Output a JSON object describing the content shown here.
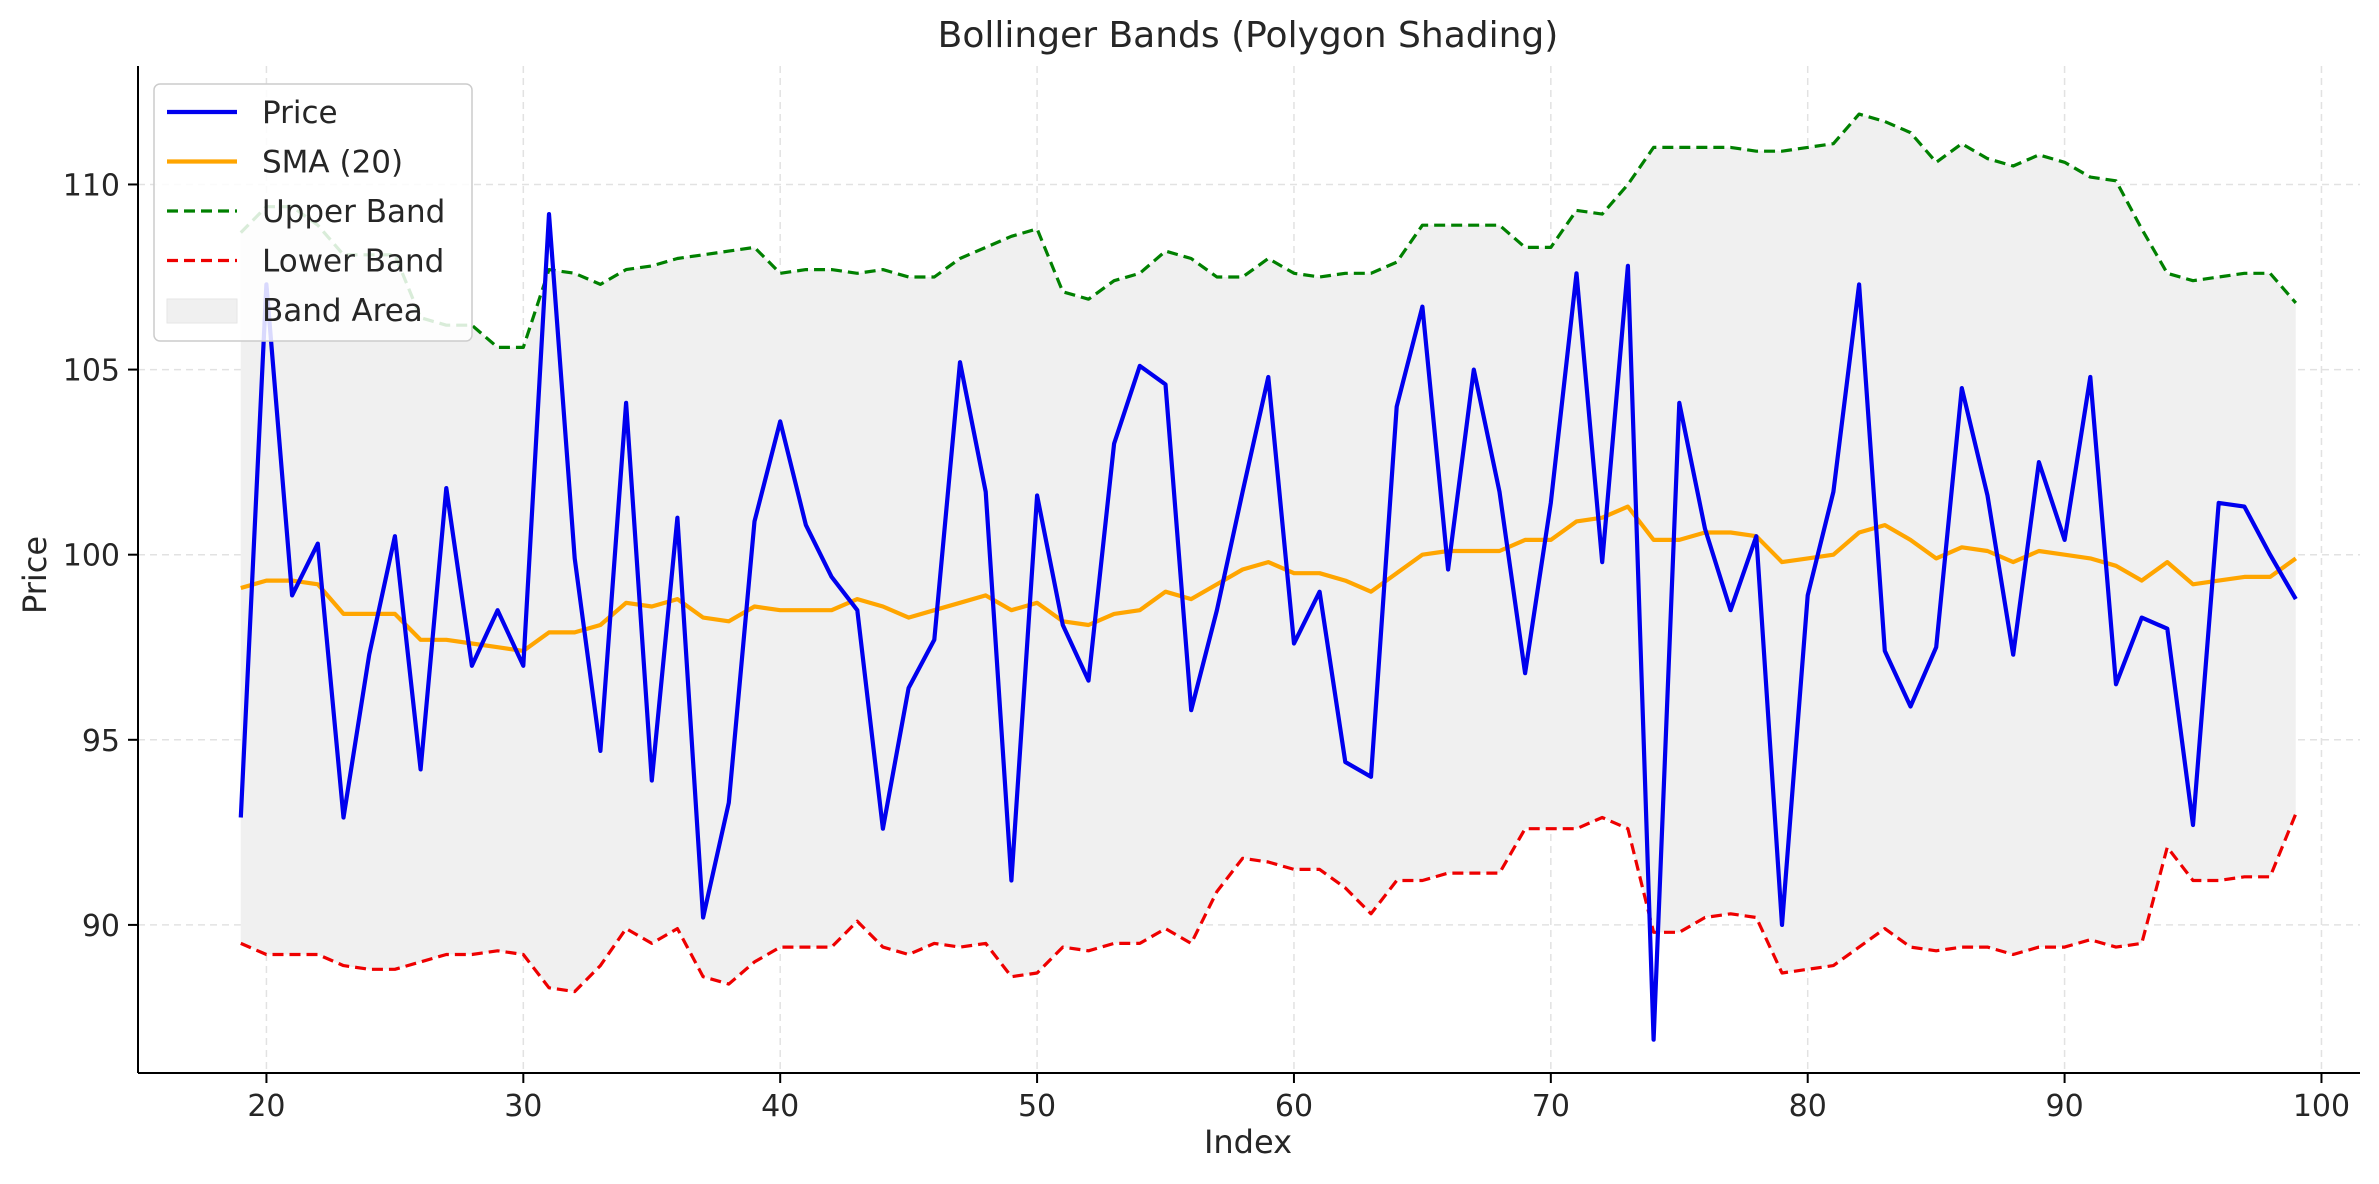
{
  "chart_data": {
    "type": "line",
    "title": "Bollinger Bands (Polygon Shading)",
    "xlabel": "Index",
    "ylabel": "Price",
    "xlim": [
      15,
      101.5
    ],
    "ylim": [
      86.0,
      113.2
    ],
    "x_ticks": [
      20,
      30,
      40,
      50,
      60,
      70,
      80,
      90,
      100
    ],
    "y_ticks": [
      90,
      95,
      100,
      105,
      110
    ],
    "grid": true,
    "legend_position": "top-left",
    "x": [
      19,
      20,
      21,
      22,
      23,
      24,
      25,
      26,
      27,
      28,
      29,
      30,
      31,
      32,
      33,
      34,
      35,
      36,
      37,
      38,
      39,
      40,
      41,
      42,
      43,
      44,
      45,
      46,
      47,
      48,
      49,
      50,
      51,
      52,
      53,
      54,
      55,
      56,
      57,
      58,
      59,
      60,
      61,
      62,
      63,
      64,
      65,
      66,
      67,
      68,
      69,
      70,
      71,
      72,
      73,
      74,
      75,
      76,
      77,
      78,
      79,
      80,
      81,
      82,
      83,
      84,
      85,
      86,
      87,
      88,
      89,
      90,
      91,
      92,
      93,
      94,
      95,
      96,
      97,
      98,
      99
    ],
    "series": [
      {
        "name": "Price",
        "color": "#0000ee",
        "style": "solid",
        "values": [
          92.9,
          107.3,
          98.9,
          100.3,
          92.9,
          97.3,
          100.5,
          94.2,
          101.8,
          97.0,
          98.5,
          97.0,
          109.2,
          99.9,
          94.7,
          104.1,
          93.9,
          101.0,
          90.2,
          93.3,
          100.9,
          103.6,
          100.8,
          99.4,
          98.5,
          92.6,
          96.4,
          97.7,
          105.2,
          101.7,
          91.2,
          101.6,
          98.1,
          96.6,
          103.0,
          105.1,
          104.6,
          95.8,
          98.5,
          101.7,
          104.8,
          97.6,
          99.0,
          94.4,
          94.0,
          104.0,
          106.7,
          99.6,
          105.0,
          101.7,
          96.8,
          101.4,
          107.6,
          99.8,
          107.8,
          86.9,
          104.1,
          100.7,
          98.5,
          100.5,
          90.0,
          98.9,
          101.7,
          107.3,
          97.4,
          95.9,
          97.5,
          104.5,
          101.6,
          97.3,
          102.5,
          100.4,
          104.8,
          96.5,
          98.3,
          98.0,
          92.7,
          101.4,
          101.3,
          100.0,
          98.8
        ]
      },
      {
        "name": "SMA (20)",
        "color": "#ffa500",
        "style": "solid",
        "values": [
          99.1,
          99.3,
          99.3,
          99.2,
          98.4,
          98.4,
          98.4,
          97.7,
          97.7,
          97.6,
          97.5,
          97.4,
          97.9,
          97.9,
          98.1,
          98.7,
          98.6,
          98.8,
          98.3,
          98.2,
          98.6,
          98.5,
          98.5,
          98.5,
          98.8,
          98.6,
          98.3,
          98.5,
          98.7,
          98.9,
          98.5,
          98.7,
          98.2,
          98.1,
          98.4,
          98.5,
          99.0,
          98.8,
          99.2,
          99.6,
          99.8,
          99.5,
          99.5,
          99.3,
          99.0,
          99.5,
          100.0,
          100.1,
          100.1,
          100.1,
          100.4,
          100.4,
          100.9,
          101.0,
          101.3,
          100.4,
          100.4,
          100.6,
          100.6,
          100.5,
          99.8,
          99.9,
          100.0,
          100.6,
          100.8,
          100.4,
          99.9,
          100.2,
          100.1,
          99.8,
          100.1,
          100.0,
          99.9,
          99.7,
          99.3,
          99.8,
          99.2,
          99.3,
          99.4,
          99.4,
          99.9
        ]
      },
      {
        "name": "Upper Band",
        "color": "#008000",
        "style": "dashed",
        "values": [
          108.7,
          109.4,
          109.4,
          108.9,
          108.1,
          108.1,
          108.1,
          106.4,
          106.2,
          106.2,
          105.6,
          105.6,
          107.7,
          107.6,
          107.3,
          107.7,
          107.8,
          108.0,
          108.1,
          108.2,
          108.3,
          107.6,
          107.7,
          107.7,
          107.6,
          107.7,
          107.5,
          107.5,
          108.0,
          108.3,
          108.6,
          108.8,
          107.1,
          106.9,
          107.4,
          107.6,
          108.2,
          108.0,
          107.5,
          107.5,
          108.0,
          107.6,
          107.5,
          107.6,
          107.6,
          107.9,
          108.9,
          108.9,
          108.9,
          108.9,
          108.3,
          108.3,
          109.3,
          109.2,
          110.0,
          111.0,
          111.0,
          111.0,
          111.0,
          110.9,
          110.9,
          111.0,
          111.1,
          111.9,
          111.7,
          111.4,
          110.6,
          111.1,
          110.7,
          110.5,
          110.8,
          110.6,
          110.2,
          110.1,
          108.8,
          107.6,
          107.4,
          107.5,
          107.6,
          107.6,
          106.8
        ]
      },
      {
        "name": "Lower Band",
        "color": "#ee0000",
        "style": "dashed",
        "values": [
          89.5,
          89.2,
          89.2,
          89.2,
          88.9,
          88.8,
          88.8,
          89.0,
          89.2,
          89.2,
          89.3,
          89.2,
          88.3,
          88.2,
          88.9,
          89.9,
          89.5,
          89.9,
          88.6,
          88.4,
          89.0,
          89.4,
          89.4,
          89.4,
          90.1,
          89.4,
          89.2,
          89.5,
          89.4,
          89.5,
          88.6,
          88.7,
          89.4,
          89.3,
          89.5,
          89.5,
          89.9,
          89.5,
          90.9,
          91.8,
          91.7,
          91.5,
          91.5,
          91.0,
          90.3,
          91.2,
          91.2,
          91.4,
          91.4,
          91.4,
          92.6,
          92.6,
          92.6,
          92.9,
          92.6,
          89.8,
          89.8,
          90.2,
          90.3,
          90.2,
          88.7,
          88.8,
          88.9,
          89.4,
          89.9,
          89.4,
          89.3,
          89.4,
          89.4,
          89.2,
          89.4,
          89.4,
          89.6,
          89.4,
          89.5,
          92.1,
          91.2,
          91.2,
          91.3,
          91.3,
          93.0
        ]
      }
    ],
    "band_area": {
      "name": "Band Area",
      "color": "#f0f0f0",
      "between": [
        "Upper Band",
        "Lower Band"
      ]
    }
  }
}
